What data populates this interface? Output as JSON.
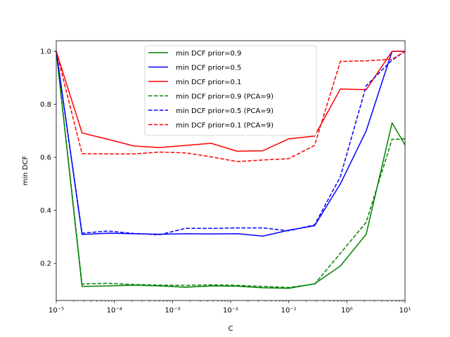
{
  "chart_data": {
    "type": "line",
    "title": "",
    "xlabel": "C",
    "ylabel": "min DCF",
    "xscale": "log",
    "xlim": [
      1e-05,
      10
    ],
    "ylim": [
      0.06,
      1.04
    ],
    "grid": false,
    "legend_placement": "upper-center",
    "x": [
      1e-05,
      2.78e-05,
      7.74e-05,
      0.000215,
      0.000599,
      0.00167,
      0.00464,
      0.0129,
      0.0359,
      0.1,
      0.278,
      0.774,
      2.15,
      5.99,
      10
    ],
    "x_tick_labels": [
      "10⁻⁵",
      "10⁻⁴",
      "10⁻³",
      "10⁻²",
      "10⁻¹",
      "10⁰",
      "10¹"
    ],
    "y_tick_labels": [
      "0.2",
      "0.4",
      "0.6",
      "0.8",
      "1.0"
    ],
    "series": [
      {
        "name": "min DCF prior=0.9",
        "color": "#008000",
        "dash": "solid",
        "x": [
          1e-05,
          2.78e-05,
          7.74e-05,
          0.000215,
          0.000599,
          0.00167,
          0.00464,
          0.0129,
          0.0359,
          0.1,
          0.278,
          0.774,
          2.15,
          5.99,
          10
        ],
        "values": [
          1.0,
          0.113,
          0.115,
          0.118,
          0.115,
          0.11,
          0.115,
          0.114,
          0.108,
          0.106,
          0.123,
          0.19,
          0.31,
          0.73,
          0.647
        ]
      },
      {
        "name": "min DCF prior=0.5",
        "color": "#0000ff",
        "dash": "solid",
        "x": [
          1e-05,
          2.78e-05,
          7.74e-05,
          0.000215,
          0.000599,
          0.00167,
          0.00464,
          0.0129,
          0.0359,
          0.1,
          0.278,
          0.774,
          2.15,
          5.99,
          10
        ],
        "values": [
          1.0,
          0.309,
          0.314,
          0.312,
          0.31,
          0.312,
          0.311,
          0.312,
          0.303,
          0.325,
          0.342,
          0.5,
          0.7,
          1.0,
          1.0
        ]
      },
      {
        "name": "min DCF prior=0.1",
        "color": "#ff0000",
        "dash": "solid",
        "x": [
          1e-05,
          2.78e-05,
          7.74e-05,
          0.000215,
          0.000599,
          0.00167,
          0.00464,
          0.0129,
          0.0359,
          0.1,
          0.278,
          0.774,
          2.15,
          5.99,
          10
        ],
        "values": [
          1.0,
          0.692,
          0.668,
          0.643,
          0.637,
          0.645,
          0.653,
          0.623,
          0.625,
          0.67,
          0.68,
          0.858,
          0.855,
          1.0,
          1.0
        ]
      },
      {
        "name": "min DCF prior=0.9 (PCA=9)",
        "color": "#008000",
        "dash": "dashed",
        "x": [
          1e-05,
          2.78e-05,
          7.74e-05,
          0.000215,
          0.000599,
          0.00167,
          0.00464,
          0.0129,
          0.0359,
          0.1,
          0.278,
          0.774,
          2.15,
          5.99,
          10
        ],
        "values": [
          1.0,
          0.122,
          0.125,
          0.12,
          0.118,
          0.117,
          0.119,
          0.117,
          0.113,
          0.109,
          0.122,
          0.238,
          0.355,
          0.668,
          0.67
        ]
      },
      {
        "name": "min DCF prior=0.5 (PCA=9)",
        "color": "#0000ff",
        "dash": "dashed",
        "x": [
          1e-05,
          2.78e-05,
          7.74e-05,
          0.000215,
          0.000599,
          0.00167,
          0.00464,
          0.0129,
          0.0359,
          0.1,
          0.278,
          0.774,
          2.15,
          5.99,
          10
        ],
        "values": [
          1.0,
          0.314,
          0.322,
          0.313,
          0.308,
          0.332,
          0.332,
          0.334,
          0.334,
          0.323,
          0.345,
          0.527,
          0.87,
          0.967,
          1.0
        ]
      },
      {
        "name": "min DCF prior=0.1 (PCA=9)",
        "color": "#ff0000",
        "dash": "dashed",
        "x": [
          1e-05,
          2.78e-05,
          7.74e-05,
          0.000215,
          0.000599,
          0.00167,
          0.00464,
          0.0129,
          0.0359,
          0.1,
          0.278,
          0.774,
          2.15,
          5.99,
          10
        ],
        "values": [
          1.0,
          0.614,
          0.613,
          0.613,
          0.62,
          0.617,
          0.602,
          0.584,
          0.59,
          0.595,
          0.645,
          0.962,
          0.964,
          0.97,
          1.0
        ]
      }
    ]
  }
}
